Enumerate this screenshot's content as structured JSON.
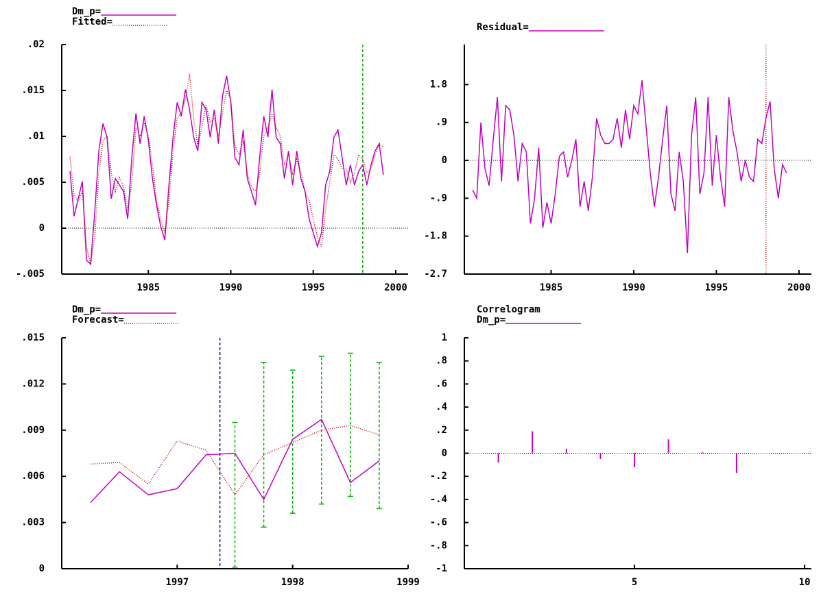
{
  "chart_data": [
    {
      "type": "line",
      "x": [
        1980.25,
        1980.5,
        1980.75,
        1981,
        1981.25,
        1981.5,
        1981.75,
        1982,
        1982.25,
        1982.5,
        1982.75,
        1983,
        1983.25,
        1983.5,
        1983.75,
        1984,
        1984.25,
        1984.5,
        1984.75,
        1985,
        1985.25,
        1985.5,
        1985.75,
        1986,
        1986.25,
        1986.5,
        1986.75,
        1987,
        1987.25,
        1987.5,
        1987.75,
        1988,
        1988.25,
        1988.5,
        1988.75,
        1989,
        1989.25,
        1989.5,
        1989.75,
        1990,
        1990.25,
        1990.5,
        1990.75,
        1991,
        1991.25,
        1991.5,
        1991.75,
        1992,
        1992.25,
        1992.5,
        1992.75,
        1993,
        1993.25,
        1993.5,
        1993.75,
        1994,
        1994.25,
        1994.5,
        1994.75,
        1995,
        1995.25,
        1995.5,
        1995.75,
        1996,
        1996.25,
        1996.5,
        1996.75,
        1997,
        1997.25,
        1997.5,
        1997.75,
        1998,
        1998.25,
        1998.5,
        1998.75,
        1999,
        1999.25
      ],
      "series": [
        {
          "name": "Dm_p=",
          "color": "#c000c0",
          "style": "solid",
          "values": [
            0.0062,
            0.0013,
            0.0032,
            0.0051,
            -0.0035,
            -0.0039,
            0.0017,
            0.0084,
            0.0114,
            0.0099,
            0.0032,
            0.0054,
            0.0047,
            0.004,
            0.001,
            0.0077,
            0.0125,
            0.0092,
            0.0122,
            0.0096,
            0.0054,
            0.0025,
            0.0002,
            -0.0013,
            0.0047,
            0.0099,
            0.0137,
            0.0122,
            0.0151,
            0.0129,
            0.0099,
            0.0084,
            0.0137,
            0.0129,
            0.0099,
            0.0129,
            0.0092,
            0.0144,
            0.0166,
            0.0137,
            0.0077,
            0.0069,
            0.0107,
            0.0054,
            0.004,
            0.0025,
            0.0077,
            0.0122,
            0.0099,
            0.0151,
            0.0099,
            0.0092,
            0.0054,
            0.0084,
            0.0047,
            0.0084,
            0.0054,
            0.004,
            0.001,
            -0.0005,
            -0.002,
            -0.0005,
            0.0047,
            0.0062,
            0.0099,
            0.0107,
            0.0077,
            0.0047,
            0.0069,
            0.0047,
            0.0062,
            0.0069,
            0.0047,
            0.0069,
            0.0084,
            0.0092,
            0.0058
          ]
        },
        {
          "name": "Fitted=",
          "color": "#c00000",
          "style": "dotted",
          "values": [
            0.0078,
            0.0035,
            0.003,
            0.004,
            -0.002,
            -0.004,
            -0.001,
            0.006,
            0.0095,
            0.01,
            0.006,
            0.004,
            0.0055,
            0.0045,
            0.002,
            0.005,
            0.011,
            0.01,
            0.0115,
            0.01,
            0.007,
            0.003,
            0.001,
            -0.0005,
            0.003,
            0.0085,
            0.012,
            0.0125,
            0.014,
            0.0168,
            0.012,
            0.009,
            0.011,
            0.0135,
            0.0115,
            0.012,
            0.01,
            0.0125,
            0.015,
            0.014,
            0.009,
            0.008,
            0.0095,
            0.006,
            0.0045,
            0.004,
            0.006,
            0.01,
            0.011,
            0.0125,
            0.011,
            0.01,
            0.007,
            0.008,
            0.006,
            0.0075,
            0.006,
            0.004,
            0.003,
            0.001,
            -0.001,
            -0.002,
            0.002,
            0.005,
            0.008,
            0.0075,
            0.0065,
            0.0065,
            0.005,
            0.006,
            0.008,
            0.0075,
            0.006,
            0.0065,
            0.008,
            0.0092,
            0.0088
          ]
        }
      ],
      "xlim": [
        1979.75,
        2000.75
      ],
      "xticks": [
        1985,
        1990,
        1995,
        2000
      ],
      "ylim": [
        -0.005,
        0.02
      ],
      "yticks": [
        {
          "value": 0.02,
          "label": ".02"
        },
        {
          "value": 0.015,
          "label": ".015"
        },
        {
          "value": 0.01,
          "label": ".01"
        },
        {
          "value": 0.005,
          "label": ".005"
        },
        0,
        {
          "value": -0.005,
          "label": "-.005"
        }
      ],
      "baseline": 0,
      "vline": {
        "x": 1998,
        "color": "#00b000",
        "style": "dashed"
      }
    },
    {
      "type": "line",
      "x": [
        1980.25,
        1980.5,
        1980.75,
        1981,
        1981.25,
        1981.5,
        1981.75,
        1982,
        1982.25,
        1982.5,
        1982.75,
        1983,
        1983.25,
        1983.5,
        1983.75,
        1984,
        1984.25,
        1984.5,
        1984.75,
        1985,
        1985.25,
        1985.5,
        1985.75,
        1986,
        1986.25,
        1986.5,
        1986.75,
        1987,
        1987.25,
        1987.5,
        1987.75,
        1988,
        1988.25,
        1988.5,
        1988.75,
        1989,
        1989.25,
        1989.5,
        1989.75,
        1990,
        1990.25,
        1990.5,
        1990.75,
        1991,
        1991.25,
        1991.5,
        1991.75,
        1992,
        1992.25,
        1992.5,
        1992.75,
        1993,
        1993.25,
        1993.5,
        1993.75,
        1994,
        1994.25,
        1994.5,
        1994.75,
        1995,
        1995.25,
        1995.5,
        1995.75,
        1996,
        1996.25,
        1996.5,
        1996.75,
        1997,
        1997.25,
        1997.5,
        1997.75,
        1998,
        1998.25,
        1998.5,
        1998.75,
        1999,
        1999.25
      ],
      "series": [
        {
          "name": "Residual=",
          "color": "#c000c0",
          "style": "solid",
          "values": [
            -0.7,
            -0.9,
            0.9,
            -0.2,
            -0.6,
            0.5,
            1.5,
            -0.5,
            1.3,
            1.2,
            0.6,
            -0.5,
            0.4,
            0.2,
            -1.5,
            -0.9,
            0.3,
            -1.6,
            -1.0,
            -1.5,
            -0.8,
            0.1,
            0.2,
            -0.4,
            0.0,
            0.5,
            -1.1,
            -0.5,
            -1.2,
            -0.4,
            1.0,
            0.6,
            0.4,
            0.4,
            0.5,
            1.0,
            0.3,
            1.2,
            0.5,
            1.3,
            1.1,
            1.9,
            0.8,
            -0.3,
            -1.1,
            -0.4,
            0.5,
            1.3,
            -0.8,
            -1.2,
            0.2,
            -0.5,
            -2.2,
            0.6,
            1.5,
            -0.8,
            -0.3,
            1.5,
            -0.6,
            0.6,
            -0.4,
            -1.1,
            1.5,
            0.7,
            0.2,
            -0.5,
            0.0,
            -0.4,
            -0.5,
            0.5,
            0.4,
            1.0,
            1.4,
            -0.2,
            -0.9,
            -0.1,
            -0.3
          ]
        }
      ],
      "xlim": [
        1979.75,
        2000.75
      ],
      "xticks": [
        1985,
        1990,
        1995,
        2000
      ],
      "ylim": [
        -2.7,
        2.75
      ],
      "yticks": [
        1.8,
        {
          "value": 0.9,
          "label": ".9"
        },
        0,
        {
          "value": -0.9,
          "label": "-.9"
        },
        -1.8,
        -2.7
      ],
      "baseline": 0,
      "vline": {
        "x": 1998,
        "color": "#c00000",
        "style": "dotted"
      }
    },
    {
      "type": "line",
      "x": [
        1996.25,
        1996.5,
        1996.75,
        1997,
        1997.25,
        1997.5,
        1997.75,
        1998,
        1998.25,
        1998.5,
        1998.75
      ],
      "series": [
        {
          "name": "Dm_p=",
          "color": "#c000c0",
          "style": "solid",
          "values": [
            0.0043,
            0.0063,
            0.0048,
            0.0052,
            0.0074,
            0.0075,
            0.0045,
            0.0084,
            0.0097,
            0.0056,
            0.007
          ]
        },
        {
          "name": "Forecast=",
          "color": "#c00000",
          "style": "dotted",
          "values": [
            0.0068,
            0.0069,
            0.0055,
            0.0083,
            0.0077,
            0.0048,
            0.0074,
            0.0082,
            0.009,
            0.0093,
            0.0087
          ]
        }
      ],
      "error_bars": {
        "color": "#00b000",
        "x": [
          1997.5,
          1997.75,
          1998,
          1998.25,
          1998.5,
          1998.75
        ],
        "low": [
          0.0001,
          0.0027,
          0.0036,
          0.0042,
          0.0047,
          0.0039
        ],
        "high": [
          0.0095,
          0.0134,
          0.0129,
          0.0138,
          0.014,
          0.0134
        ]
      },
      "xlim": [
        1996,
        1999
      ],
      "xticks": [
        1997,
        1998,
        1999
      ],
      "ylim": [
        0,
        0.015
      ],
      "yticks": [
        {
          "value": 0.015,
          "label": ".015"
        },
        {
          "value": 0.012,
          "label": ".012"
        },
        {
          "value": 0.009,
          "label": ".009"
        },
        {
          "value": 0.006,
          "label": ".006"
        },
        {
          "value": 0.003,
          "label": ".003"
        },
        0
      ],
      "vline": {
        "x": 1997.37,
        "color": "#0000c0",
        "style": "dashed"
      }
    },
    {
      "type": "bar",
      "title": "Correlogram",
      "x": [
        1,
        2,
        3,
        4,
        5,
        6,
        7,
        8
      ],
      "series": [
        {
          "name": "Dm_p=",
          "color": "#c000c0",
          "style": "solid",
          "values": [
            -0.08,
            0.19,
            0.04,
            -0.05,
            -0.12,
            0.12,
            0.01,
            -0.17
          ]
        }
      ],
      "xlim": [
        0,
        10.2
      ],
      "xticks": [
        5,
        10
      ],
      "ylim": [
        -1,
        1
      ],
      "yticks": [
        1,
        {
          "value": 0.8,
          "label": ".8"
        },
        {
          "value": 0.6,
          "label": ".6"
        },
        {
          "value": 0.4,
          "label": ".4"
        },
        {
          "value": 0.2,
          "label": ".2"
        },
        0,
        {
          "value": -0.2,
          "label": "-.2"
        },
        {
          "value": -0.4,
          "label": "-.4"
        },
        {
          "value": -0.6,
          "label": "-.6"
        },
        {
          "value": -0.8,
          "label": "-.8"
        },
        -1
      ],
      "baseline": 0
    }
  ]
}
